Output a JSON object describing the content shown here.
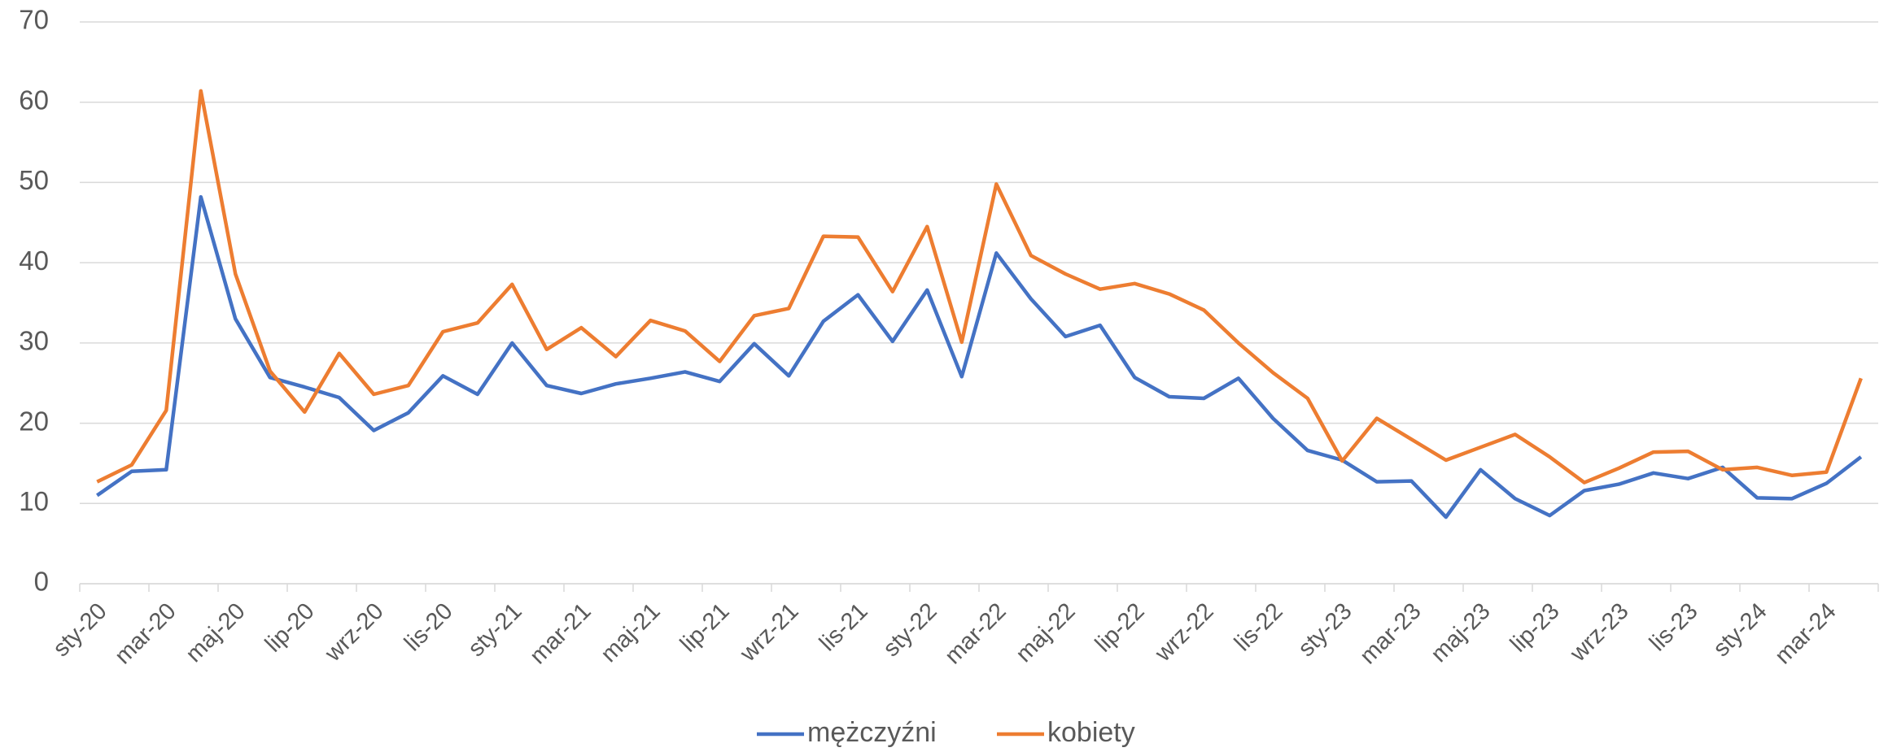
{
  "chart_data": {
    "type": "line",
    "categories": [
      "sty-20",
      null,
      "mar-20",
      null,
      "maj-20",
      null,
      "lip-20",
      null,
      "wrz-20",
      null,
      "lis-20",
      null,
      "sty-21",
      null,
      "mar-21",
      null,
      "maj-21",
      null,
      "lip-21",
      null,
      "wrz-21",
      null,
      "lis-21",
      null,
      "sty-22",
      null,
      "mar-22",
      null,
      "maj-22",
      null,
      "lip-22",
      null,
      "wrz-22",
      null,
      "lis-22",
      null,
      "sty-23",
      null,
      "mar-23",
      null,
      "maj-23",
      null,
      "lip-23",
      null,
      "wrz-23",
      null,
      "lis-23",
      null,
      "sty-24",
      null,
      "mar-24",
      null
    ],
    "series": [
      {
        "name": "mężczyźni",
        "color": "#4472c4",
        "values": [
          11,
          14,
          14.2,
          48.2,
          33,
          25.7,
          24.5,
          23.2,
          19.1,
          21.3,
          25.9,
          23.6,
          30,
          24.7,
          23.7,
          24.9,
          25.6,
          26.4,
          25.2,
          29.9,
          25.9,
          32.7,
          36,
          30.2,
          36.6,
          25.8,
          41.2,
          35.5,
          30.8,
          32.2,
          25.7,
          23.3,
          23.1,
          25.6,
          20.6,
          16.6,
          15.4,
          12.7,
          12.8,
          8.3,
          14.2,
          10.6,
          8.5,
          11.6,
          12.4,
          13.8,
          13.1,
          14.5,
          10.7,
          10.6,
          12.5,
          15.8
        ]
      },
      {
        "name": "kobiety",
        "color": "#ed7d31",
        "values": [
          12.7,
          14.8,
          21.6,
          61.4,
          38.6,
          26.5,
          21.4,
          28.7,
          23.6,
          24.7,
          31.4,
          32.5,
          37.3,
          29.2,
          31.9,
          28.3,
          32.8,
          31.5,
          27.7,
          33.4,
          34.3,
          43.3,
          43.2,
          36.4,
          44.5,
          30.1,
          49.8,
          40.9,
          38.6,
          36.7,
          37.4,
          36.1,
          34.1,
          30,
          26.3,
          23.1,
          15.3,
          20.6,
          18,
          15.4,
          17,
          18.6,
          15.8,
          12.6,
          14.4,
          16.4,
          16.5,
          14.2,
          14.5,
          13.5,
          13.9,
          25.6
        ]
      }
    ],
    "ylim": [
      0,
      70
    ],
    "yticks": [
      0,
      10,
      20,
      30,
      40,
      50,
      60,
      70
    ],
    "grid": true,
    "legend": "bottom"
  }
}
